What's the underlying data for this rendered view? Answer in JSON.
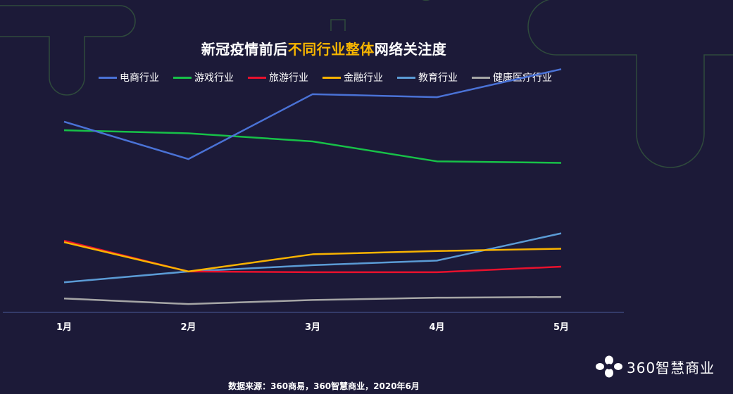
{
  "title": {
    "part1": "新冠疫情前后",
    "highlight": "不同行业整体",
    "part2": "网络关注度"
  },
  "source": "数据来源：360商易，360智慧商业，2020年6月",
  "logo": {
    "text": "360智慧商业",
    "icon": "flower-icon"
  },
  "colors": {
    "background": "#1c1a38",
    "highlight": "#f7b500",
    "axis": "#4a5a9a"
  },
  "chart_data": {
    "type": "line",
    "title": "新冠疫情前后不同行业整体网络关注度",
    "categories": [
      "1月",
      "2月",
      "3月",
      "4月",
      "5月"
    ],
    "ylim": [
      0,
      100
    ],
    "grid": false,
    "legend_position": "top",
    "series": [
      {
        "name": "电商行业",
        "color": "#4a72d6",
        "values": [
          75.5,
          60.7,
          86.4,
          85.2,
          96.3
        ]
      },
      {
        "name": "游戏行业",
        "color": "#17c148",
        "values": [
          72.1,
          70.9,
          67.7,
          59.8,
          59.2
        ]
      },
      {
        "name": "旅游行业",
        "color": "#e8112d",
        "values": [
          28.4,
          16.2,
          15.9,
          15.9,
          18.1
        ]
      },
      {
        "name": "金融行业",
        "color": "#f9b300",
        "values": [
          27.8,
          16.2,
          23.0,
          24.3,
          25.2
        ]
      },
      {
        "name": "教育行业",
        "color": "#5b9bd5",
        "values": [
          11.9,
          16.2,
          18.7,
          20.5,
          31.3
        ]
      },
      {
        "name": "健康医疗行业",
        "color": "#a6a6a6",
        "values": [
          5.5,
          3.3,
          4.9,
          5.8,
          6.1
        ]
      }
    ]
  }
}
